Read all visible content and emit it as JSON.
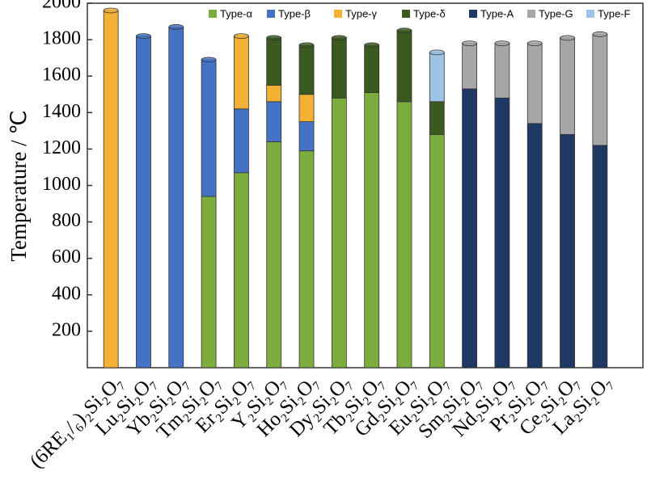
{
  "chart_data": {
    "type": "stacked_bar",
    "y_label": "Temperature / ℃",
    "categories": [
      "(6RE₁/₆)₂Si₂O₇",
      "Lu₂Si₂O₇",
      "Yb₂Si₂O₇",
      "Tm₂Si₂O₇",
      "Er₂Si₂O₇",
      "Y₂Si₂O₇",
      "Ho₂Si₂O₇",
      "Dy₂Si₂O₇",
      "Tb₂Si₂O₇",
      "Gd₂Si₂O₇",
      "Eu₂Si₂O₇",
      "Sm₂Si₂O₇",
      "Nd₂Si₂O₇",
      "Pr₂Si₂O₇",
      "Ce₂Si₂O₇",
      "La₂Si₂O₇"
    ],
    "series": [
      {
        "name": "Type-α",
        "color": "#7cac3e",
        "values": [
          null,
          null,
          null,
          940,
          1070,
          1240,
          1190,
          1480,
          1510,
          1460,
          1280,
          null,
          null,
          null,
          null,
          null
        ]
      },
      {
        "name": "Type-β",
        "color": "#4472c4",
        "values": [
          null,
          1820,
          1870,
          750,
          350,
          220,
          160,
          null,
          null,
          null,
          null,
          null,
          null,
          null,
          null,
          null
        ]
      },
      {
        "name": "Type-γ",
        "color": "#f2b134",
        "values": [
          1960,
          null,
          null,
          null,
          400,
          90,
          150,
          null,
          null,
          null,
          null,
          null,
          null,
          null,
          null,
          null
        ]
      },
      {
        "name": "Type-δ",
        "color": "#3a5a1f",
        "values": [
          null,
          null,
          null,
          null,
          null,
          260,
          270,
          330,
          260,
          390,
          180,
          null,
          null,
          null,
          null,
          null
        ]
      },
      {
        "name": "Type-A",
        "color": "#1f3864",
        "values": [
          null,
          null,
          null,
          null,
          null,
          null,
          null,
          null,
          null,
          null,
          null,
          1530,
          1480,
          1340,
          1280,
          1220
        ]
      },
      {
        "name": "Type-G",
        "color": "#a6a6a6",
        "values": [
          null,
          null,
          null,
          null,
          null,
          null,
          null,
          null,
          null,
          null,
          null,
          250,
          300,
          440,
          530,
          610
        ]
      },
      {
        "name": "Type-F",
        "color": "#9dc3e6",
        "values": [
          null,
          null,
          null,
          null,
          null,
          null,
          null,
          null,
          null,
          null,
          270,
          null,
          null,
          null,
          null,
          null
        ]
      }
    ],
    "ylim": [
      0,
      2000
    ],
    "yticks": [
      200,
      400,
      600,
      800,
      1000,
      1200,
      1400,
      1600,
      1800,
      2000
    ],
    "grid": false,
    "legend": "top"
  }
}
